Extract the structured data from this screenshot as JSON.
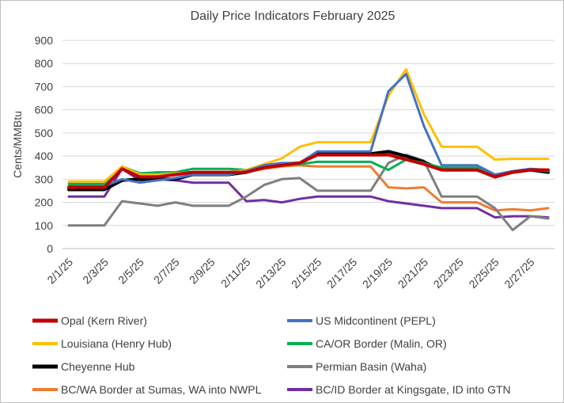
{
  "chart_data": {
    "type": "line",
    "title": "Daily Price Indicators February 2025",
    "xlabel": "",
    "ylabel": "Cents/MMBtu",
    "ylim": [
      0,
      900
    ],
    "yticks": [
      0,
      100,
      200,
      300,
      400,
      500,
      600,
      700,
      800,
      900
    ],
    "grid": true,
    "legend_position": "bottom",
    "x": [
      "2/1/25",
      "2/2/25",
      "2/3/25",
      "2/4/25",
      "2/5/25",
      "2/6/25",
      "2/7/25",
      "2/8/25",
      "2/9/25",
      "2/10/25",
      "2/11/25",
      "2/12/25",
      "2/13/25",
      "2/14/25",
      "2/15/25",
      "2/16/25",
      "2/17/25",
      "2/18/25",
      "2/19/25",
      "2/20/25",
      "2/21/25",
      "2/22/25",
      "2/23/25",
      "2/24/25",
      "2/25/25",
      "2/26/25",
      "2/27/25",
      "2/28/25"
    ],
    "xtick_labels": [
      "2/1/25",
      "2/3/25",
      "2/5/25",
      "2/7/25",
      "2/9/25",
      "2/11/25",
      "2/13/25",
      "2/15/25",
      "2/17/25",
      "2/19/25",
      "2/21/25",
      "2/23/25",
      "2/25/25",
      "2/27/25"
    ],
    "series": [
      {
        "name": "Opal (Kern River)",
        "color": "#c00000",
        "values": [
          265,
          265,
          265,
          345,
          310,
          310,
          320,
          330,
          330,
          330,
          330,
          350,
          360,
          370,
          405,
          405,
          405,
          405,
          405,
          385,
          365,
          340,
          340,
          340,
          310,
          330,
          340,
          340
        ]
      },
      {
        "name": "US Midcontinent (PEPL)",
        "color": "#4472c4",
        "values": [
          270,
          270,
          270,
          300,
          285,
          295,
          305,
          320,
          320,
          320,
          335,
          360,
          370,
          370,
          420,
          420,
          420,
          420,
          680,
          755,
          530,
          360,
          360,
          360,
          320,
          335,
          345,
          340
        ]
      },
      {
        "name": "Louisiana (Henry Hub)",
        "color": "#ffc000",
        "values": [
          290,
          290,
          290,
          355,
          320,
          320,
          325,
          330,
          330,
          330,
          340,
          365,
          390,
          440,
          460,
          460,
          460,
          460,
          660,
          775,
          580,
          440,
          440,
          440,
          385,
          388,
          388,
          388
        ]
      },
      {
        "name": "CA/OR Border (Malin, OR)",
        "color": "#00b050",
        "values": [
          280,
          280,
          280,
          355,
          325,
          330,
          330,
          345,
          345,
          345,
          340,
          350,
          360,
          365,
          375,
          375,
          375,
          375,
          340,
          385,
          370,
          350,
          350,
          350,
          310,
          330,
          340,
          335
        ]
      },
      {
        "name": "Cheyenne Hub",
        "color": "#000000",
        "values": [
          255,
          255,
          255,
          295,
          300,
          300,
          300,
          320,
          320,
          320,
          330,
          355,
          365,
          370,
          410,
          410,
          410,
          410,
          420,
          400,
          375,
          340,
          340,
          340,
          310,
          330,
          340,
          330
        ]
      },
      {
        "name": "Permian Basin (Waha)",
        "color": "#7f7f7f",
        "values": [
          100,
          100,
          100,
          205,
          195,
          185,
          200,
          185,
          185,
          185,
          225,
          275,
          300,
          305,
          250,
          250,
          250,
          250,
          370,
          405,
          380,
          225,
          225,
          225,
          175,
          80,
          140,
          130
        ]
      },
      {
        "name": "BC/WA Border at Sumas, WA into NWPL",
        "color": "#ed7d31",
        "values": [
          270,
          270,
          270,
          350,
          320,
          320,
          330,
          330,
          330,
          330,
          330,
          345,
          355,
          360,
          355,
          355,
          355,
          355,
          265,
          260,
          265,
          200,
          200,
          200,
          165,
          170,
          165,
          175
        ]
      },
      {
        "name": "BC/ID Border at Kingsgate, ID into GTN",
        "color": "#7030a0",
        "values": [
          225,
          225,
          225,
          345,
          295,
          300,
          295,
          285,
          285,
          285,
          205,
          210,
          200,
          215,
          225,
          225,
          225,
          225,
          205,
          195,
          185,
          175,
          175,
          175,
          135,
          140,
          140,
          135
        ]
      }
    ],
    "legend_order": [
      "Opal (Kern River)",
      "US Midcontinent (PEPL)",
      "Louisiana (Henry Hub)",
      "CA/OR Border (Malin, OR)",
      "Cheyenne Hub",
      "Permian Basin (Waha)",
      "BC/WA Border at Sumas, WA into NWPL",
      "BC/ID Border at Kingsgate, ID into GTN"
    ],
    "emphasis_series": [
      "Opal (Kern River)",
      "Cheyenne Hub"
    ]
  }
}
